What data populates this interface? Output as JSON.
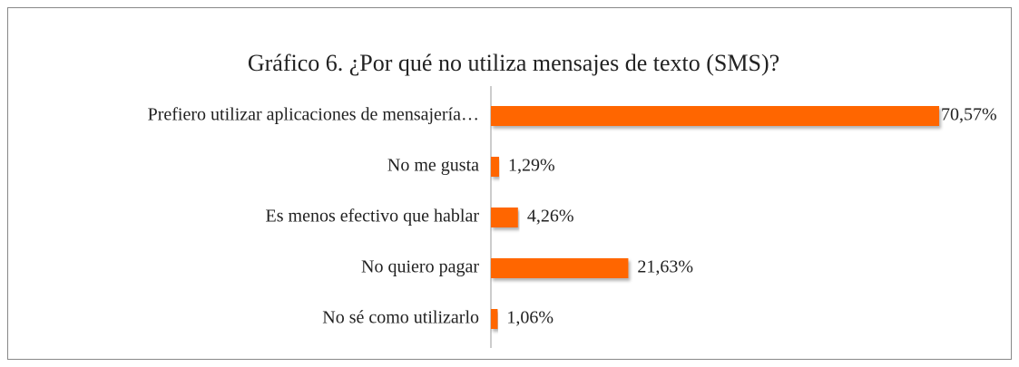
{
  "chart_data": {
    "type": "bar",
    "orientation": "horizontal",
    "title": "Gráfico 6. ¿Por qué no utiliza mensajes de texto (SMS)?",
    "categories": [
      "Prefiero utilizar aplicaciones de mensajería…",
      "No me gusta",
      "Es menos efectivo que hablar",
      "No quiero pagar",
      "No sé como utilizarlo"
    ],
    "values": [
      70.57,
      1.29,
      4.26,
      21.63,
      1.06
    ],
    "value_labels": [
      "70,57%",
      "1,29%",
      "4,26%",
      "21,63%",
      "1,06%"
    ],
    "color": "#ff6600"
  }
}
